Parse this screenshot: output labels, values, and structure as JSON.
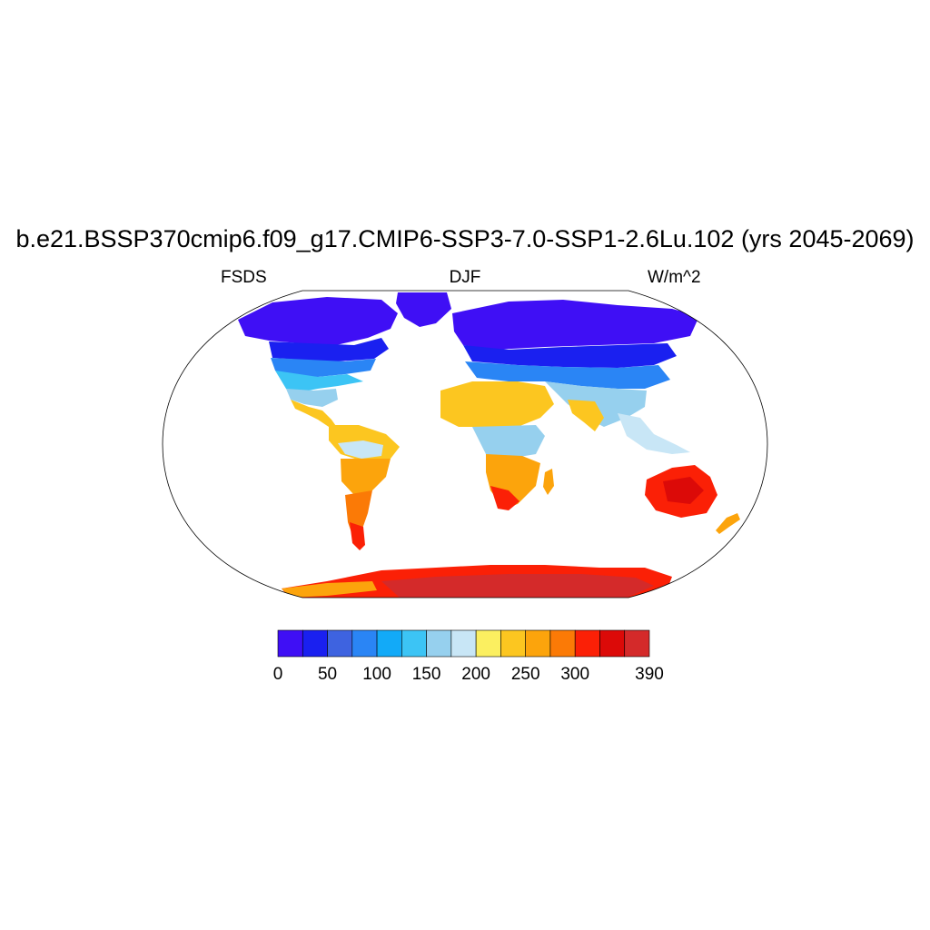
{
  "title": "b.e21.BSSP370cmip6.f09_g17.CMIP6-SSP3-7.0-SSP1-2.6Lu.102 (yrs 2045-2069)",
  "left_label": "FSDS",
  "center_label": "DJF",
  "right_label": "W/m^2",
  "colorbar": {
    "colors": [
      "#3f0ff5",
      "#1a20f0",
      "#3e63e0",
      "#2a85f5",
      "#12aaf8",
      "#3cc4f5",
      "#96d0ee",
      "#c8e6f6",
      "#fbef60",
      "#fcc620",
      "#fca40c",
      "#fb7a06",
      "#fb2006",
      "#dc0a08",
      "#d42a2a"
    ],
    "labels": [
      "0",
      "50",
      "100",
      "150",
      "200",
      "250",
      "300",
      "390"
    ],
    "label_boundary_index": [
      0,
      2,
      4,
      6,
      8,
      10,
      12,
      15
    ]
  }
}
